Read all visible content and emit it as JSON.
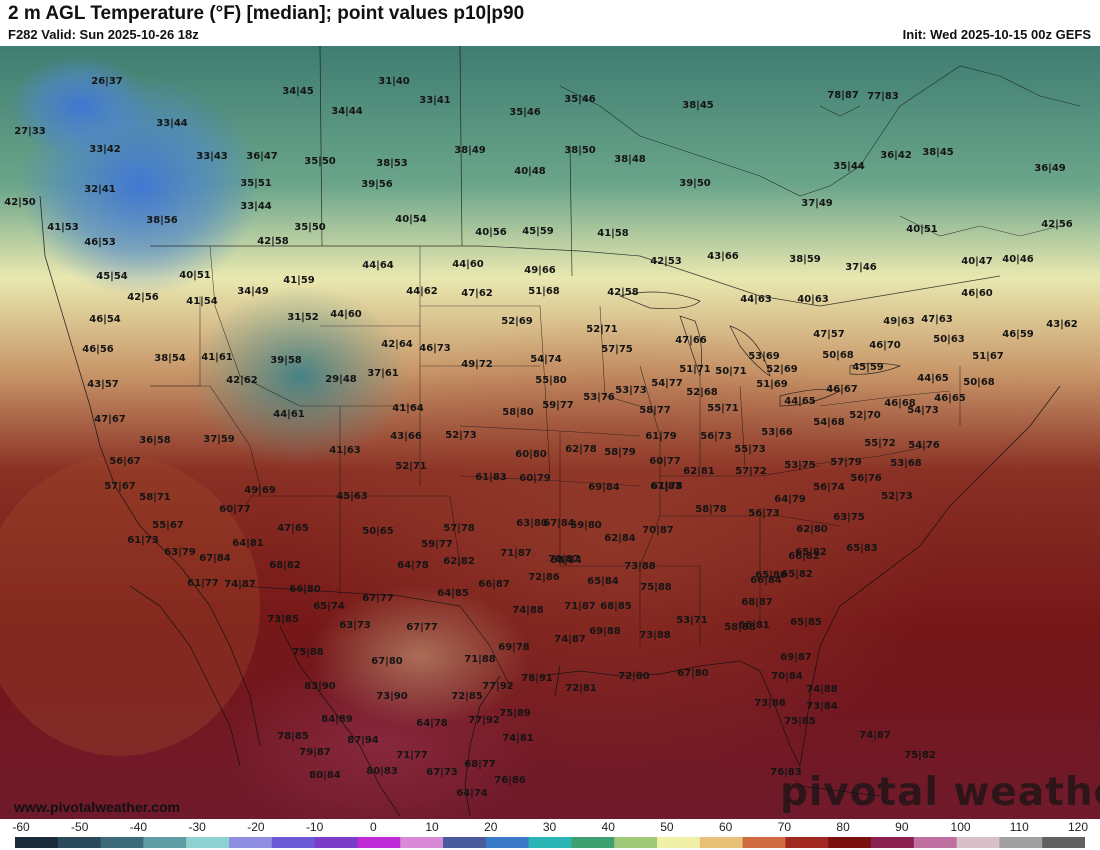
{
  "header": {
    "title": "2 m AGL Temperature (°F) [median]; point values p10|p90",
    "valid": "F282 Valid: Sun 2025-10-26 18z",
    "init": "Init: Wed 2025-10-15 00z GEFS"
  },
  "footer": {
    "site": "www.pivotalweather.com",
    "watermark": "pivotal weather"
  },
  "colorbar": {
    "ticks": [
      "-60",
      "-50",
      "-40",
      "-30",
      "-20",
      "-10",
      "0",
      "10",
      "20",
      "30",
      "40",
      "50",
      "60",
      "70",
      "80",
      "90",
      "100",
      "110",
      "120"
    ],
    "colors": [
      "#1a2c3a",
      "#2a4a5a",
      "#3b6b78",
      "#5e9ea4",
      "#8fd0d0",
      "#8e8fe0",
      "#6a5ad8",
      "#7a3dc8",
      "#c02bd8",
      "#d88ad8",
      "#4a5a9a",
      "#3a78c8",
      "#2ab4b4",
      "#3ea070",
      "#a0c878",
      "#f0f0a8",
      "#e8c078",
      "#d06a40",
      "#a02820",
      "#7a1010",
      "#8a2050",
      "#c070a0",
      "#d8c0c8",
      "#a0a0a0",
      "#606060"
    ]
  },
  "points": [
    {
      "label": "26|37"
    },
    {
      "label": "27|33"
    },
    {
      "label": "33|42"
    },
    {
      "label": "32|41"
    },
    {
      "label": "42|50"
    },
    {
      "label": "41|53"
    },
    {
      "label": "46|53"
    },
    {
      "label": "45|54"
    },
    {
      "label": "42|56"
    },
    {
      "label": "46|54"
    },
    {
      "label": "46|56"
    },
    {
      "label": "43|57"
    },
    {
      "label": "47|67"
    },
    {
      "label": "36|58"
    },
    {
      "label": "56|67"
    },
    {
      "label": "57|67"
    },
    {
      "label": "58|71"
    },
    {
      "label": "55|67"
    },
    {
      "label": "61|73"
    },
    {
      "label": "63|79"
    },
    {
      "label": "61|77"
    },
    {
      "label": "67|84"
    },
    {
      "label": "74|87"
    },
    {
      "label": "73|85"
    },
    {
      "label": "75|88"
    },
    {
      "label": "83|90"
    },
    {
      "label": "84|89"
    },
    {
      "label": "78|85"
    },
    {
      "label": "79|87"
    },
    {
      "label": "87|94"
    },
    {
      "label": "80|84"
    },
    {
      "label": "80|83"
    },
    {
      "label": "71|77"
    },
    {
      "label": "67|73"
    },
    {
      "label": "64|74"
    },
    {
      "label": "76|86"
    },
    {
      "label": "68|77"
    },
    {
      "label": "34|45"
    },
    {
      "label": "33|44"
    },
    {
      "label": "33|43"
    },
    {
      "label": "36|47"
    },
    {
      "label": "35|50"
    },
    {
      "label": "35|51"
    },
    {
      "label": "33|44"
    },
    {
      "label": "38|56"
    },
    {
      "label": "42|58"
    },
    {
      "label": "35|50"
    },
    {
      "label": "38|53"
    },
    {
      "label": "39|56"
    },
    {
      "label": "40|54"
    },
    {
      "label": "31|40"
    },
    {
      "label": "33|41"
    },
    {
      "label": "34|44"
    },
    {
      "label": "35|46"
    },
    {
      "label": "35|46"
    },
    {
      "label": "38|45"
    },
    {
      "label": "38|49"
    },
    {
      "label": "40|48"
    },
    {
      "label": "38|50"
    },
    {
      "label": "38|48"
    },
    {
      "label": "39|50"
    },
    {
      "label": "40|56"
    },
    {
      "label": "45|59"
    },
    {
      "label": "41|58"
    },
    {
      "label": "40|51"
    },
    {
      "label": "41|54"
    },
    {
      "label": "34|49"
    },
    {
      "label": "41|59"
    },
    {
      "label": "31|52"
    },
    {
      "label": "44|60"
    },
    {
      "label": "44|64"
    },
    {
      "label": "44|62"
    },
    {
      "label": "44|60"
    },
    {
      "label": "47|62"
    },
    {
      "label": "49|66"
    },
    {
      "label": "51|68"
    },
    {
      "label": "52|69"
    },
    {
      "label": "38|54"
    },
    {
      "label": "41|61"
    },
    {
      "label": "42|62"
    },
    {
      "label": "39|58"
    },
    {
      "label": "29|48"
    },
    {
      "label": "37|61"
    },
    {
      "label": "42|64"
    },
    {
      "label": "46|73"
    },
    {
      "label": "49|72"
    },
    {
      "label": "54|74"
    },
    {
      "label": "55|80"
    },
    {
      "label": "44|61"
    },
    {
      "label": "41|64"
    },
    {
      "label": "37|59"
    },
    {
      "label": "43|66"
    },
    {
      "label": "41|63"
    },
    {
      "label": "52|73"
    },
    {
      "label": "52|71"
    },
    {
      "label": "58|80"
    },
    {
      "label": "59|77"
    },
    {
      "label": "60|80"
    },
    {
      "label": "61|83"
    },
    {
      "label": "60|79"
    },
    {
      "label": "62|78"
    },
    {
      "label": "58|79"
    },
    {
      "label": "49|69"
    },
    {
      "label": "45|63"
    },
    {
      "label": "60|77"
    },
    {
      "label": "47|65"
    },
    {
      "label": "64|81"
    },
    {
      "label": "50|65"
    },
    {
      "label": "57|78"
    },
    {
      "label": "59|77"
    },
    {
      "label": "68|82"
    },
    {
      "label": "66|80"
    },
    {
      "label": "64|78"
    },
    {
      "label": "62|82"
    },
    {
      "label": "65|74"
    },
    {
      "label": "67|77"
    },
    {
      "label": "63|73"
    },
    {
      "label": "67|77"
    },
    {
      "label": "64|85"
    },
    {
      "label": "66|87"
    },
    {
      "label": "71|87"
    },
    {
      "label": "72|86"
    },
    {
      "label": "70|87"
    },
    {
      "label": "65|84"
    },
    {
      "label": "67|84"
    },
    {
      "label": "63|80"
    },
    {
      "label": "59|80"
    },
    {
      "label": "69|84"
    },
    {
      "label": "62|84"
    },
    {
      "label": "67|83"
    },
    {
      "label": "70|87"
    },
    {
      "label": "68|84"
    },
    {
      "label": "73|88"
    },
    {
      "label": "74|88"
    },
    {
      "label": "71|87"
    },
    {
      "label": "68|85"
    },
    {
      "label": "75|88"
    },
    {
      "label": "74|87"
    },
    {
      "label": "69|88"
    },
    {
      "label": "73|88"
    },
    {
      "label": "69|78"
    },
    {
      "label": "67|80"
    },
    {
      "label": "73|90"
    },
    {
      "label": "71|88"
    },
    {
      "label": "72|85"
    },
    {
      "label": "64|78"
    },
    {
      "label": "77|92"
    },
    {
      "label": "77|92"
    },
    {
      "label": "75|89"
    },
    {
      "label": "78|91"
    },
    {
      "label": "74|81"
    },
    {
      "label": "72|81"
    },
    {
      "label": "72|80"
    },
    {
      "label": "67|80"
    },
    {
      "label": "53|71"
    },
    {
      "label": "52|71"
    },
    {
      "label": "57|75"
    },
    {
      "label": "53|76"
    },
    {
      "label": "53|73"
    },
    {
      "label": "54|77"
    },
    {
      "label": "58|77"
    },
    {
      "label": "61|79"
    },
    {
      "label": "60|77"
    },
    {
      "label": "62|81"
    },
    {
      "label": "61|78"
    },
    {
      "label": "58|78"
    },
    {
      "label": "56|73"
    },
    {
      "label": "56|73"
    },
    {
      "label": "57|72"
    },
    {
      "label": "55|73"
    },
    {
      "label": "55|71"
    },
    {
      "label": "53|66"
    },
    {
      "label": "52|68"
    },
    {
      "label": "51|71"
    },
    {
      "label": "50|71"
    },
    {
      "label": "47|66"
    },
    {
      "label": "42|58"
    },
    {
      "label": "42|53"
    },
    {
      "label": "43|66"
    },
    {
      "label": "44|63"
    },
    {
      "label": "40|63"
    },
    {
      "label": "38|59"
    },
    {
      "label": "37|46"
    },
    {
      "label": "37|49"
    },
    {
      "label": "40|51"
    },
    {
      "label": "40|47"
    },
    {
      "label": "40|46"
    },
    {
      "label": "42|56"
    },
    {
      "label": "46|60"
    },
    {
      "label": "49|63"
    },
    {
      "label": "47|63"
    },
    {
      "label": "46|59"
    },
    {
      "label": "43|62"
    },
    {
      "label": "50|63"
    },
    {
      "label": "51|67"
    },
    {
      "label": "50|68"
    },
    {
      "label": "46|65"
    },
    {
      "label": "44|65"
    },
    {
      "label": "46|68"
    },
    {
      "label": "46|70"
    },
    {
      "label": "45|59"
    },
    {
      "label": "47|57"
    },
    {
      "label": "50|68"
    },
    {
      "label": "52|69"
    },
    {
      "label": "53|69"
    },
    {
      "label": "51|69"
    },
    {
      "label": "44|65"
    },
    {
      "label": "46|67"
    },
    {
      "label": "52|70"
    },
    {
      "label": "54|68"
    },
    {
      "label": "54|73"
    },
    {
      "label": "55|72"
    },
    {
      "label": "54|76"
    },
    {
      "label": "53|68"
    },
    {
      "label": "52|73"
    },
    {
      "label": "57|79"
    },
    {
      "label": "56|76"
    },
    {
      "label": "56|74"
    },
    {
      "label": "53|75"
    },
    {
      "label": "64|79"
    },
    {
      "label": "62|80"
    },
    {
      "label": "63|75"
    },
    {
      "label": "65|83"
    },
    {
      "label": "65|82"
    },
    {
      "label": "65|82"
    },
    {
      "label": "66|82"
    },
    {
      "label": "65|86"
    },
    {
      "label": "66|84"
    },
    {
      "label": "68|87"
    },
    {
      "label": "65|85"
    },
    {
      "label": "66|81"
    },
    {
      "label": "58|88"
    },
    {
      "label": "69|87"
    },
    {
      "label": "70|84"
    },
    {
      "label": "74|88"
    },
    {
      "label": "73|86"
    },
    {
      "label": "73|84"
    },
    {
      "label": "75|85"
    },
    {
      "label": "74|87"
    },
    {
      "label": "75|82"
    },
    {
      "label": "76|83"
    },
    {
      "label": "77|83"
    },
    {
      "label": "78|87"
    },
    {
      "label": "35|44"
    },
    {
      "label": "36|42"
    },
    {
      "label": "38|45"
    },
    {
      "label": "36|49"
    },
    {
      "label": "34|48"
    },
    {
      "label": "32|42"
    }
  ]
}
